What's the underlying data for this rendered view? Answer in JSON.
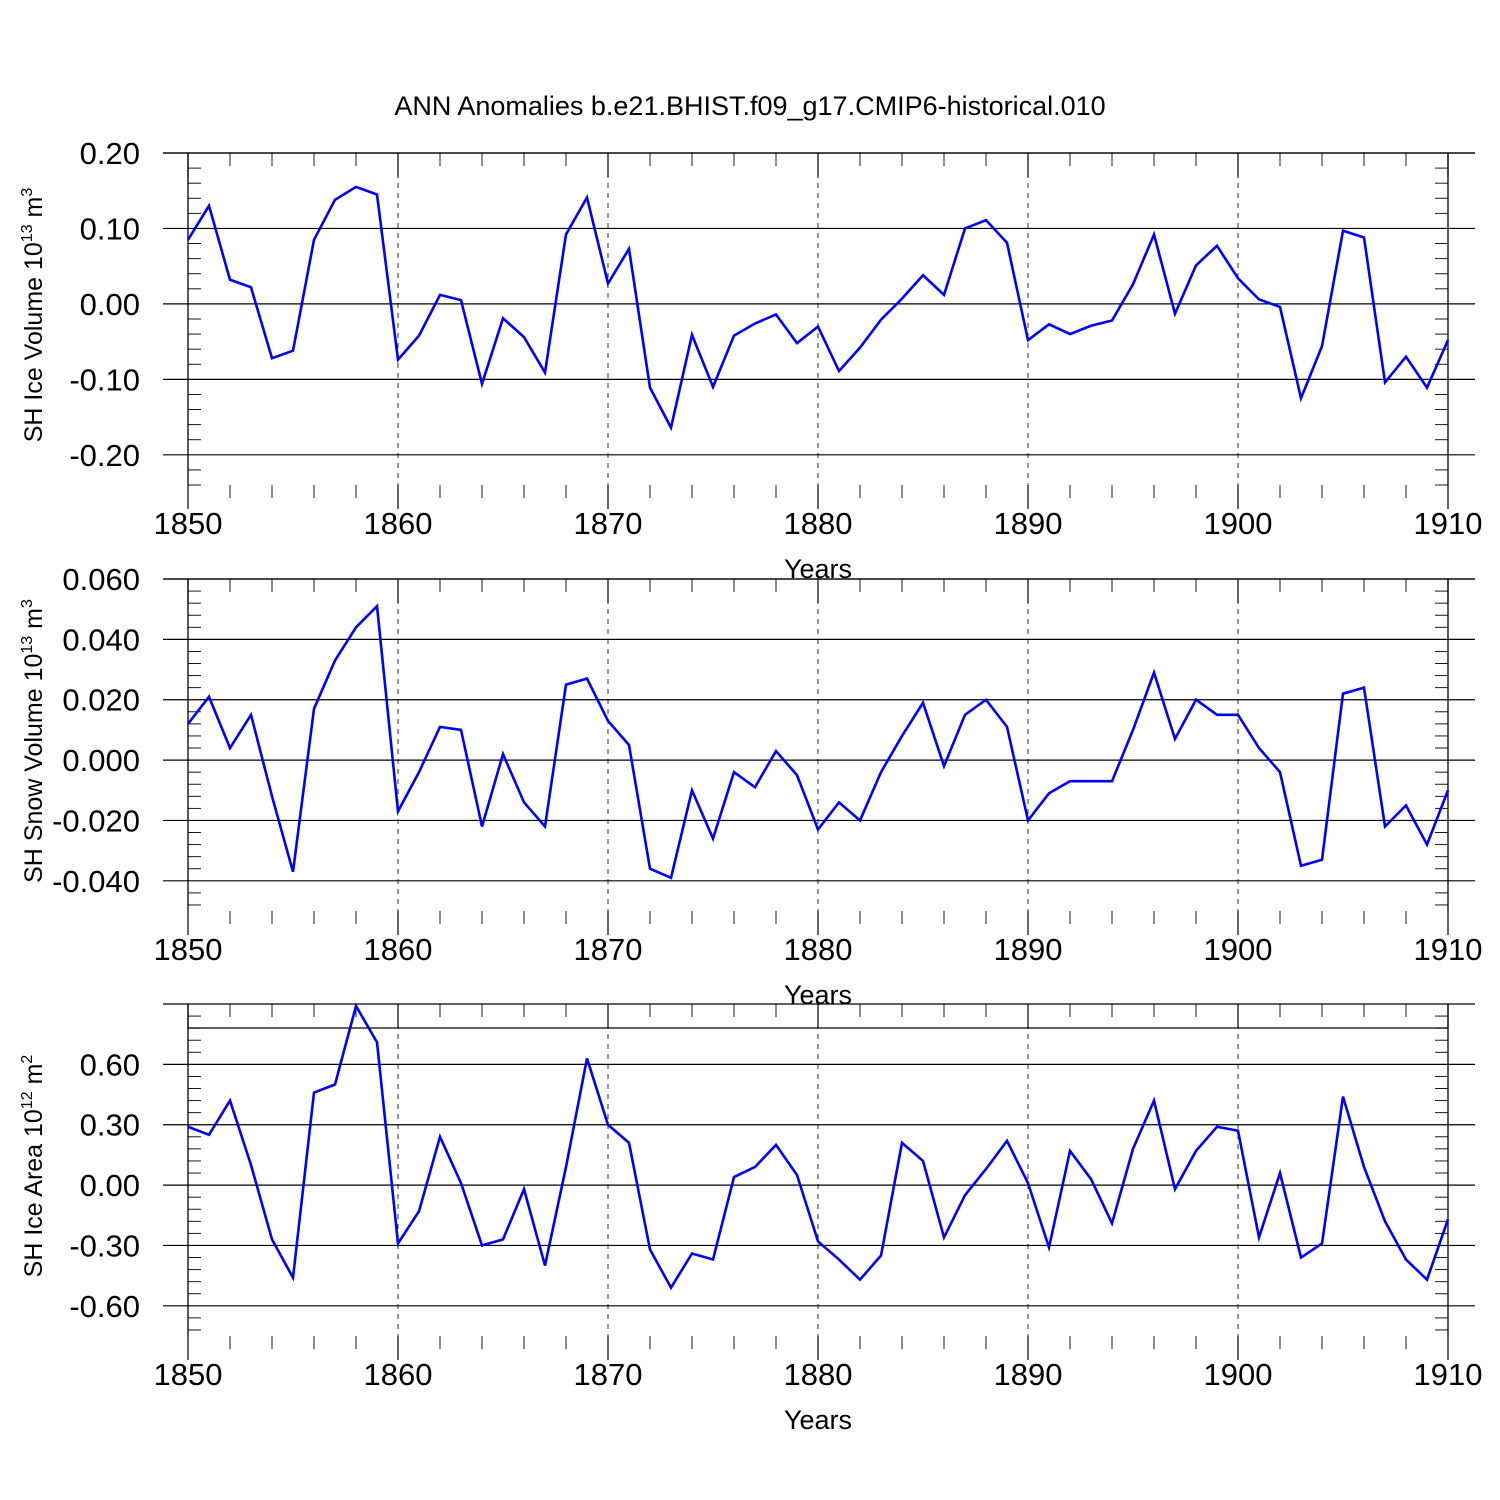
{
  "title": "ANN Anomalies b.e21.BHIST.f09_g17.CMIP6-historical.010",
  "colors": {
    "series": "#0000ff",
    "axes": "#000000",
    "background": "#ffffff"
  },
  "chart_data": [
    {
      "type": "line",
      "ylabel": "SH Ice Volume 10",
      "ylabel_sup": "13",
      "ylabel_unit": " m",
      "ylabel_unit_sup": "3",
      "xlabel": "Years",
      "xlim": [
        1850,
        1910
      ],
      "ylim": [
        -0.24,
        0.2
      ],
      "top_axis": false,
      "xticks": [
        1850,
        1860,
        1870,
        1880,
        1890,
        1900,
        1910
      ],
      "xtick_labels": [
        "1850",
        "1860",
        "1870",
        "1880",
        "1890",
        "1900",
        "1910"
      ],
      "yticks": [
        -0.2,
        -0.1,
        0.0,
        0.1,
        0.2
      ],
      "ytick_labels": [
        "-0.20",
        "-0.10",
        "0.00",
        "0.10",
        "0.20"
      ],
      "x_start": 1850,
      "values": [
        0.085,
        0.13,
        0.032,
        0.022,
        -0.072,
        -0.062,
        0.085,
        0.138,
        0.155,
        0.145,
        -0.074,
        -0.042,
        0.012,
        0.005,
        -0.106,
        -0.019,
        -0.044,
        -0.091,
        0.092,
        0.141,
        0.027,
        0.073,
        -0.111,
        -0.164,
        -0.041,
        -0.11,
        -0.042,
        -0.026,
        -0.014,
        -0.052,
        -0.03,
        -0.089,
        -0.058,
        -0.021,
        0.007,
        0.038,
        0.012,
        0.1,
        0.111,
        0.081,
        -0.048,
        -0.027,
        -0.04,
        -0.029,
        -0.022,
        0.026,
        0.092,
        -0.013,
        0.051,
        0.077,
        0.034,
        0.006,
        -0.004,
        -0.125,
        -0.056,
        0.097,
        0.088,
        -0.104,
        -0.07,
        -0.111,
        -0.048
      ],
      "grid": "vertical dashed at decades"
    },
    {
      "type": "line",
      "ylabel": "SH Snow Volume 10",
      "ylabel_sup": "13",
      "ylabel_unit": " m",
      "ylabel_unit_sup": "3",
      "xlabel": "Years",
      "xlim": [
        1850,
        1910
      ],
      "ylim": [
        -0.05,
        0.06
      ],
      "top_axis": false,
      "xticks": [
        1850,
        1860,
        1870,
        1880,
        1890,
        1900,
        1910
      ],
      "xtick_labels": [
        "1850",
        "1860",
        "1870",
        "1880",
        "1890",
        "1900",
        "1910"
      ],
      "yticks": [
        -0.04,
        -0.02,
        0.0,
        0.02,
        0.04,
        0.06
      ],
      "ytick_labels": [
        "-0.040",
        "-0.020",
        "0.000",
        "0.020",
        "0.040",
        "0.060"
      ],
      "x_start": 1850,
      "values": [
        0.012,
        0.021,
        0.004,
        0.015,
        -0.012,
        -0.037,
        0.017,
        0.033,
        0.044,
        0.051,
        -0.017,
        -0.004,
        0.011,
        0.01,
        -0.022,
        0.002,
        -0.014,
        -0.022,
        0.025,
        0.027,
        0.013,
        0.005,
        -0.036,
        -0.039,
        -0.01,
        -0.026,
        -0.004,
        -0.009,
        0.003,
        -0.005,
        -0.023,
        -0.014,
        -0.02,
        -0.004,
        0.008,
        0.019,
        -0.002,
        0.015,
        0.02,
        0.011,
        -0.02,
        -0.011,
        -0.007,
        -0.007,
        -0.007,
        0.01,
        0.029,
        0.007,
        0.02,
        0.015,
        0.015,
        0.004,
        -0.004,
        -0.035,
        -0.033,
        0.022,
        0.024,
        -0.022,
        -0.015,
        -0.028,
        -0.01
      ],
      "grid": "vertical dashed at decades"
    },
    {
      "type": "line",
      "ylabel": "SH Ice Area 10",
      "ylabel_sup": "12",
      "ylabel_unit": " m",
      "ylabel_unit_sup": "2",
      "xlabel": "Years",
      "xlim": [
        1850,
        1910
      ],
      "ylim": [
        -0.75,
        0.9
      ],
      "top_axis": true,
      "xticks": [
        1850,
        1860,
        1870,
        1880,
        1890,
        1900,
        1910
      ],
      "xtick_labels": [
        "1850",
        "1860",
        "1870",
        "1880",
        "1890",
        "1900",
        "1910"
      ],
      "yticks": [
        -0.6,
        -0.3,
        0.0,
        0.3,
        0.6
      ],
      "ytick_labels": [
        "-0.60",
        "-0.30",
        "0.00",
        "0.30",
        "0.60"
      ],
      "x_start": 1850,
      "values": [
        0.29,
        0.25,
        0.42,
        0.1,
        -0.27,
        -0.46,
        0.46,
        0.5,
        0.89,
        0.71,
        -0.29,
        -0.13,
        0.24,
        0.01,
        -0.3,
        -0.27,
        -0.02,
        -0.4,
        0.09,
        0.63,
        0.3,
        0.21,
        -0.32,
        -0.51,
        -0.34,
        -0.37,
        0.04,
        0.09,
        0.2,
        0.05,
        -0.28,
        -0.37,
        -0.47,
        -0.35,
        0.21,
        0.12,
        -0.26,
        -0.05,
        0.08,
        0.22,
        0.01,
        -0.31,
        0.17,
        0.03,
        -0.19,
        0.18,
        0.42,
        -0.02,
        0.17,
        0.29,
        0.27,
        -0.26,
        0.06,
        -0.36,
        -0.29,
        0.44,
        0.09,
        -0.18,
        -0.37,
        -0.47,
        -0.17
      ],
      "grid": "vertical dashed at decades"
    }
  ]
}
